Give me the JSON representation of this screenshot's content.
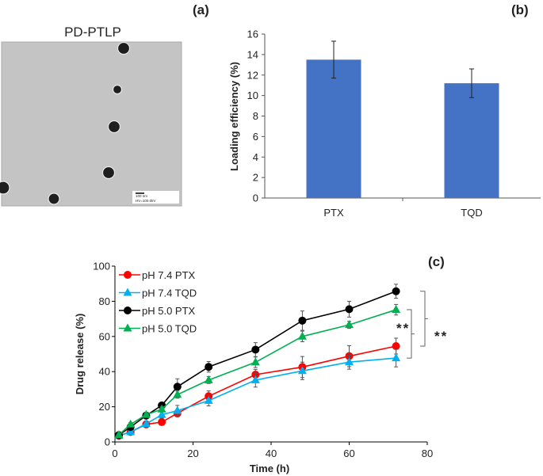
{
  "panel_labels": {
    "a": "(a)",
    "b": "(b)",
    "c": "(c)"
  },
  "micrograph": {
    "title": "PD-PTLP",
    "scale_bar_text": "100 nm",
    "scale_bar_subtext": "HV=100.0kV"
  },
  "chart_data": [
    {
      "type": "bar",
      "categories": [
        "PTX",
        "TQD"
      ],
      "values": [
        13.5,
        11.2
      ],
      "errors": [
        1.8,
        1.4
      ],
      "xlabel": "",
      "ylabel": "Loading efficiency (%)",
      "ylim": [
        0,
        16
      ],
      "yticks": [
        "0",
        "2",
        "4",
        "6",
        "8",
        "10",
        "12",
        "14",
        "16"
      ],
      "color": "#4472C4",
      "grid": false
    },
    {
      "type": "line",
      "x": [
        1,
        4,
        8,
        12,
        16,
        24,
        36,
        48,
        60,
        72
      ],
      "xlabel": "Time (h)",
      "ylabel": "Drug release (%)",
      "xlim": [
        0,
        80
      ],
      "ylim": [
        0,
        100
      ],
      "xticks": [
        "0",
        "20",
        "40",
        "60",
        "80"
      ],
      "yticks": [
        "0",
        "20",
        "40",
        "60",
        "80",
        "100"
      ],
      "grid": false,
      "legend": "top-left",
      "series": [
        {
          "name": "pH 7.4 PTX",
          "color": "#FF0000",
          "marker": "circle",
          "values": [
            3.5,
            5.7,
            10.0,
            11.3,
            16.3,
            26.0,
            38.3,
            42.6,
            48.8,
            54.5
          ],
          "errors": [
            1,
            1,
            1.5,
            1,
            2,
            3,
            3,
            6,
            6,
            4.5
          ]
        },
        {
          "name": "pH 7.4 TQD",
          "color": "#00B0F0",
          "marker": "triangle",
          "values": [
            3.5,
            5.7,
            10.3,
            15.5,
            17.8,
            23.5,
            35.2,
            40.4,
            45.4,
            47.7
          ],
          "errors": [
            1,
            1,
            1.5,
            2,
            3,
            3,
            4,
            5,
            4,
            5
          ]
        },
        {
          "name": "pH 5.0 PTX",
          "color": "#000000",
          "marker": "circle",
          "values": [
            3.9,
            8.5,
            15.0,
            20.8,
            31.4,
            42.7,
            52.5,
            69.0,
            75.5,
            85.7
          ],
          "errors": [
            1,
            1,
            1.5,
            1.5,
            4.5,
            3,
            4,
            5.5,
            4.5,
            4
          ]
        },
        {
          "name": "pH 5.0 TQD",
          "color": "#00B050",
          "marker": "triangle",
          "values": [
            4.0,
            10.0,
            15.5,
            18.6,
            26.9,
            35.2,
            45.3,
            60.0,
            66.6,
            75.2
          ],
          "errors": [
            1,
            1,
            1,
            1.5,
            2,
            2,
            3,
            3,
            2,
            3
          ]
        }
      ],
      "annotations": [
        {
          "text": "**",
          "between": [
            "pH 5.0 TQD",
            "pH 7.4 TQD"
          ],
          "at_x": 72
        },
        {
          "text": "**",
          "between": [
            "pH 5.0 PTX",
            "pH 7.4 PTX"
          ],
          "at_x": 72
        }
      ]
    }
  ]
}
